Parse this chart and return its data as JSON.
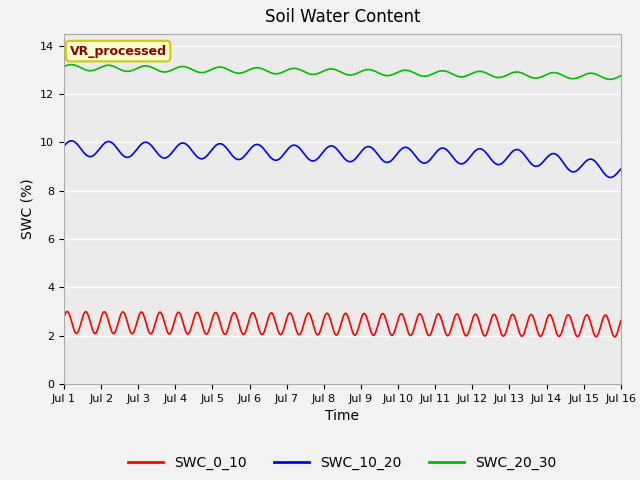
{
  "title": "Soil Water Content",
  "xlabel": "Time",
  "ylabel": "SWC (%)",
  "ylim": [
    0,
    14.5
  ],
  "yticks": [
    0,
    2,
    4,
    6,
    8,
    10,
    12,
    14
  ],
  "n_days": 15,
  "n_points": 1500,
  "swc_0_10_base": 2.55,
  "swc_0_10_amp": 0.45,
  "swc_0_10_freq": 2.0,
  "swc_0_10_drift": -0.15,
  "swc_10_20_base": 9.75,
  "swc_10_20_amp": 0.32,
  "swc_10_20_freq": 1.0,
  "swc_10_20_drift": -0.45,
  "swc_20_30_base": 13.1,
  "swc_20_30_amp": 0.12,
  "swc_20_30_freq": 1.0,
  "swc_20_30_drift": -0.38,
  "color_red": "#FF0000",
  "color_blue": "#0000FF",
  "color_green": "#00BB00",
  "legend_label_text": "VR_processed",
  "legend_text_color": "#8B0000",
  "legend_bg_color": "#FFFFCC",
  "legend_border_color": "#CCCC00",
  "plot_bg_color": "#EBEBEB",
  "fig_bg_color": "#F2F2F2",
  "grid_color": "#FFFFFF",
  "linewidth": 1.2,
  "tick_fontsize": 8,
  "label_fontsize": 10,
  "title_fontsize": 12
}
